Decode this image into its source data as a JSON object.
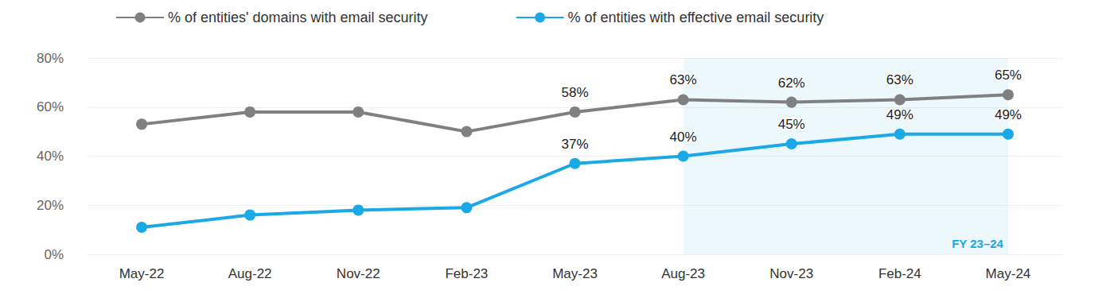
{
  "chart_data": {
    "type": "line",
    "categories": [
      "May-22",
      "Aug-22",
      "Nov-22",
      "Feb-23",
      "May-23",
      "Aug-23",
      "Nov-23",
      "Feb-24",
      "May-24"
    ],
    "series": [
      {
        "name": "% of entities' domains with email security",
        "color": "#808080",
        "marker": "circle",
        "line_style": "solid",
        "values": [
          53,
          58,
          58,
          50,
          58,
          63,
          62,
          63,
          65
        ],
        "value_labels": [
          null,
          null,
          null,
          null,
          "58%",
          "63%",
          "62%",
          "63%",
          "65%"
        ]
      },
      {
        "name": "% of entities with effective email security",
        "color": "#1ba8e6",
        "marker": "circle",
        "line_style": "solid",
        "values": [
          11,
          16,
          18,
          19,
          37,
          40,
          45,
          49,
          49
        ],
        "value_labels": [
          null,
          null,
          null,
          null,
          "37%",
          "40%",
          "45%",
          "49%",
          "49%"
        ]
      }
    ],
    "highlight": {
      "from": "Aug-23",
      "to": "May-24",
      "label": "FY 23–24"
    },
    "ylim": [
      0,
      80
    ],
    "yticks": [
      {
        "value": 0,
        "label": "0%"
      },
      {
        "value": 20,
        "label": "20%"
      },
      {
        "value": 40,
        "label": "40%"
      },
      {
        "value": 60,
        "label": "60%"
      },
      {
        "value": 80,
        "label": "80%"
      }
    ],
    "grid": true,
    "legend": "top",
    "data_labels": true
  }
}
